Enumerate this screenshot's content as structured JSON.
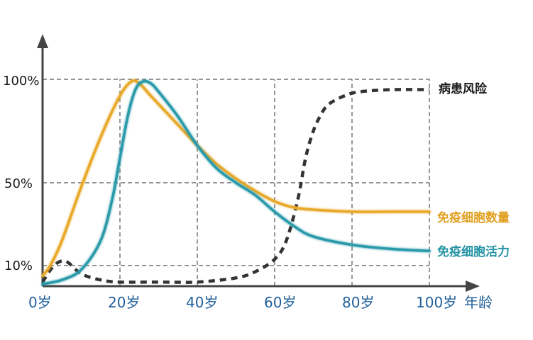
{
  "chart_data": {
    "type": "line",
    "title": "",
    "xlabel": "年龄",
    "ylabel": "",
    "x_ticks": [
      "0岁",
      "20岁",
      "40岁",
      "60岁",
      "80岁",
      "100岁"
    ],
    "y_ticks": [
      "10%",
      "50%",
      "100%"
    ],
    "xlim": [
      0,
      100
    ],
    "ylim": [
      0,
      100
    ],
    "grid": true,
    "series": [
      {
        "name": "病患风险",
        "color": "#333333",
        "style": "dashed",
        "x": [
          0,
          3,
          6,
          10,
          15,
          20,
          30,
          40,
          50,
          55,
          60,
          63,
          66,
          68,
          70,
          72,
          74,
          78,
          82,
          90,
          100
        ],
        "y": [
          2,
          10,
          12,
          6,
          3,
          2,
          2,
          2,
          4,
          7,
          13,
          22,
          42,
          62,
          75,
          83,
          88,
          92,
          94,
          95,
          95
        ]
      },
      {
        "name": "免疫细胞数量",
        "color": "#e8a92a",
        "style": "solid",
        "x": [
          0,
          2,
          5,
          10,
          15,
          20,
          23,
          25,
          28,
          32,
          36,
          40,
          45,
          50,
          55,
          60,
          65,
          70,
          80,
          90,
          100
        ],
        "y": [
          5,
          10,
          22,
          48,
          72,
          92,
          99,
          98,
          92,
          84,
          76,
          68,
          59,
          52,
          46,
          41,
          38,
          37,
          36,
          36,
          36
        ]
      },
      {
        "name": "免疫细胞活力",
        "color": "#2a9aaa",
        "style": "solid",
        "x": [
          0,
          5,
          10,
          15,
          18,
          20,
          22,
          24,
          26,
          28,
          30,
          35,
          40,
          45,
          50,
          55,
          60,
          65,
          70,
          80,
          90,
          100
        ],
        "y": [
          1,
          3,
          8,
          22,
          42,
          62,
          82,
          95,
          99,
          98,
          94,
          82,
          68,
          57,
          50,
          44,
          36,
          29,
          24,
          20,
          18,
          17
        ]
      }
    ]
  }
}
